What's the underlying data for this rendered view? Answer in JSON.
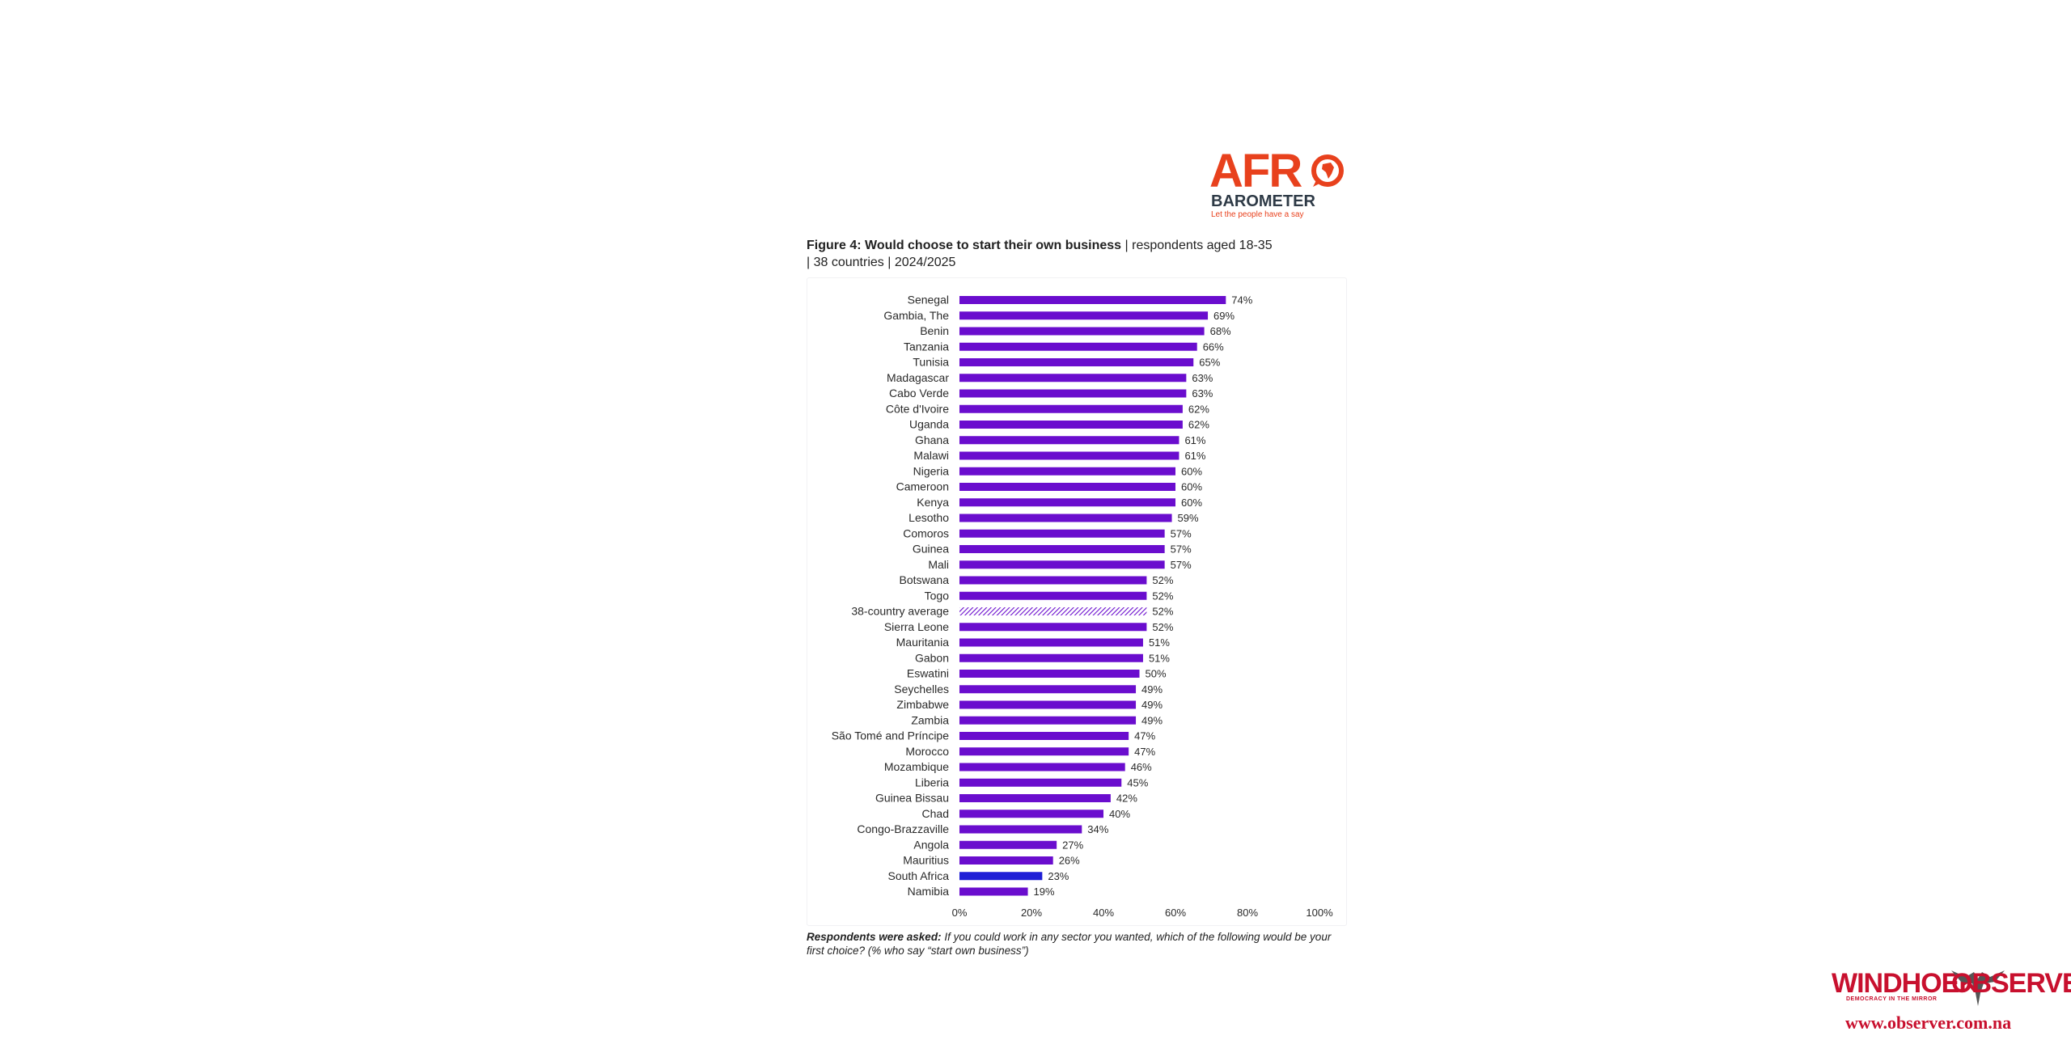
{
  "logo": {
    "afro_text": "AFR",
    "barometer_text": "BAROMETER",
    "tagline": "Let the people have a say",
    "orange": "#e8411d",
    "navy": "#2e3a46"
  },
  "title": {
    "bold": "Figure 4: Would choose to start their own business",
    "rest_line1": " | respondents aged 18-35",
    "rest_line2": "| 38 countries | 2024/2025"
  },
  "footnote": {
    "lead": "Respondents were asked:",
    "text": " If you could work in any sector you wanted, which of the following would be your first choice? (% who say “start own business”)"
  },
  "watermark": {
    "name_left": "WINDHOEK",
    "name_right": "OBSERVER",
    "tagline": "DEMOCRACY IN THE MIRROR",
    "url": "www.observer.com.na",
    "color": "#c8102e"
  },
  "chart_data": {
    "type": "bar",
    "orientation": "horizontal",
    "categories": [
      "Senegal",
      "Gambia, The",
      "Benin",
      "Tanzania",
      "Tunisia",
      "Madagascar",
      "Cabo Verde",
      "Côte d'Ivoire",
      "Uganda",
      "Ghana",
      "Malawi",
      "Nigeria",
      "Cameroon",
      "Kenya",
      "Lesotho",
      "Comoros",
      "Guinea",
      "Mali",
      "Botswana",
      "Togo",
      "38-country average",
      "Sierra Leone",
      "Mauritania",
      "Gabon",
      "Eswatini",
      "Seychelles",
      "Zimbabwe",
      "Zambia",
      "São Tomé and Príncipe",
      "Morocco",
      "Mozambique",
      "Liberia",
      "Guinea Bissau",
      "Chad",
      "Congo-Brazzaville",
      "Angola",
      "Mauritius",
      "South Africa",
      "Namibia"
    ],
    "values": [
      74,
      69,
      68,
      66,
      65,
      63,
      63,
      62,
      62,
      61,
      61,
      60,
      60,
      60,
      59,
      57,
      57,
      57,
      52,
      52,
      52,
      52,
      51,
      51,
      50,
      49,
      49,
      49,
      47,
      47,
      46,
      45,
      42,
      40,
      34,
      27,
      26,
      23,
      19
    ],
    "data_labels": [
      "74%",
      "69%",
      "68%",
      "66%",
      "65%",
      "63%",
      "63%",
      "62%",
      "62%",
      "61%",
      "61%",
      "60%",
      "60%",
      "60%",
      "59%",
      "57%",
      "57%",
      "57%",
      "52%",
      "52%",
      "52%",
      "52%",
      "51%",
      "51%",
      "50%",
      "49%",
      "49%",
      "49%",
      "47%",
      "47%",
      "46%",
      "45%",
      "42%",
      "40%",
      "34%",
      "27%",
      "26%",
      "23%",
      "19%"
    ],
    "highlight": {
      "South Africa": "blue",
      "38-country average": "hatched"
    },
    "xlim": [
      0,
      100
    ],
    "x_ticks": [
      "0%",
      "20%",
      "40%",
      "60%",
      "80%",
      "100%"
    ],
    "colors": {
      "bar": "#6a0dce",
      "highlight": "#1f1fd6",
      "average": "#6a0dce"
    },
    "grid": false,
    "legend": "none"
  }
}
